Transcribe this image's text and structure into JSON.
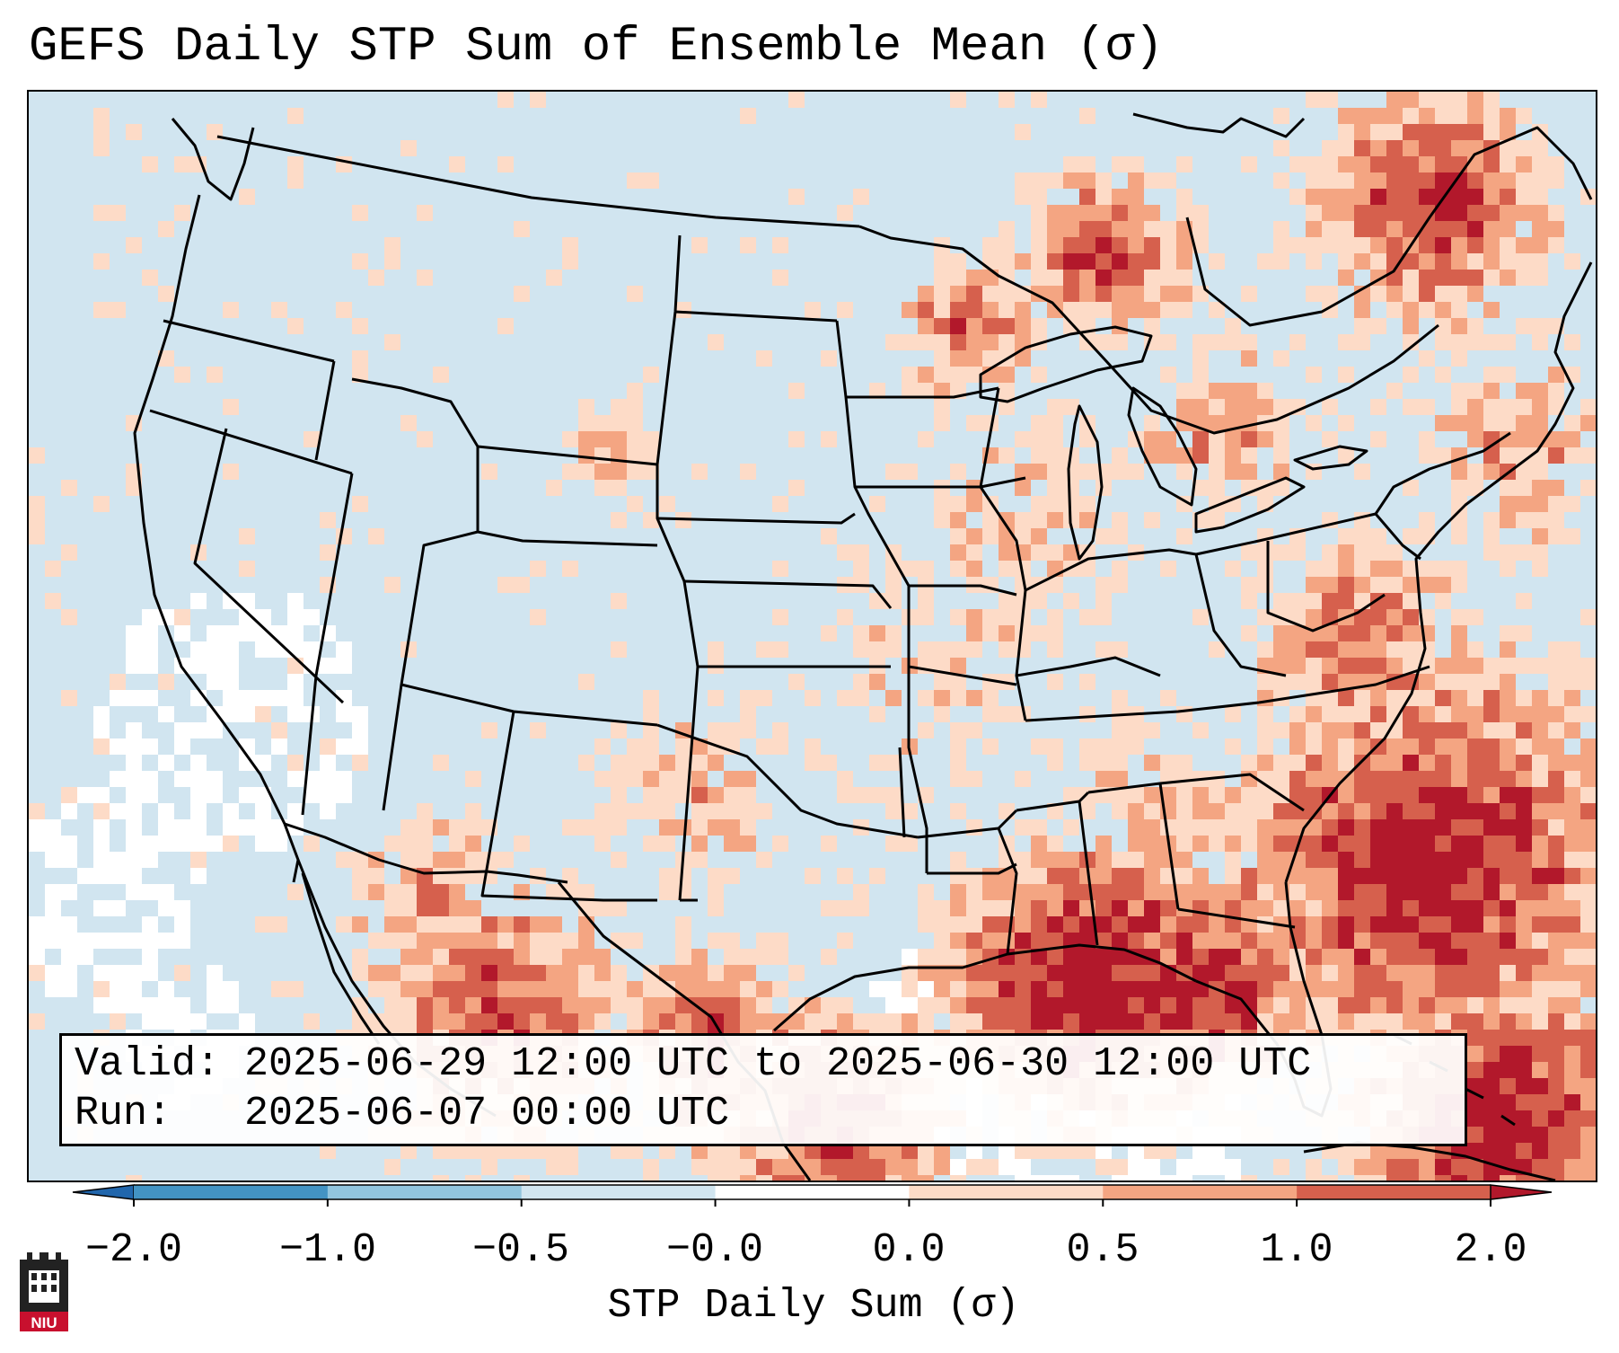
{
  "title": "GEFS Daily STP Sum of Ensemble Mean (σ)",
  "info": {
    "valid_line": "Valid: 2025-06-29 12:00 UTC to 2025-06-30 12:00 UTC",
    "run_line": "Run:   2025-06-07 00:00 UTC"
  },
  "colorbar": {
    "label": "STP Daily Sum (σ)",
    "ticks": [
      "−2.0",
      "−1.0",
      "−0.5",
      "−0.0",
      "0.0",
      "0.5",
      "1.0",
      "2.0"
    ],
    "colors": [
      "#2166ac",
      "#4393c3",
      "#92c5de",
      "#d1e5f0",
      "#ffffff",
      "#fddbc7",
      "#f4a582",
      "#d6604d",
      "#b2182b"
    ]
  },
  "map": {
    "region": "Contiguous United States",
    "variable": "STP daily sum anomaly (σ)",
    "pattern_notes": [
      "strongest positive anomalies over Gulf of Mexico, Florida, western Atlantic, Great Lakes and Quebec"
    ]
  },
  "logo": {
    "text": "NIU"
  }
}
